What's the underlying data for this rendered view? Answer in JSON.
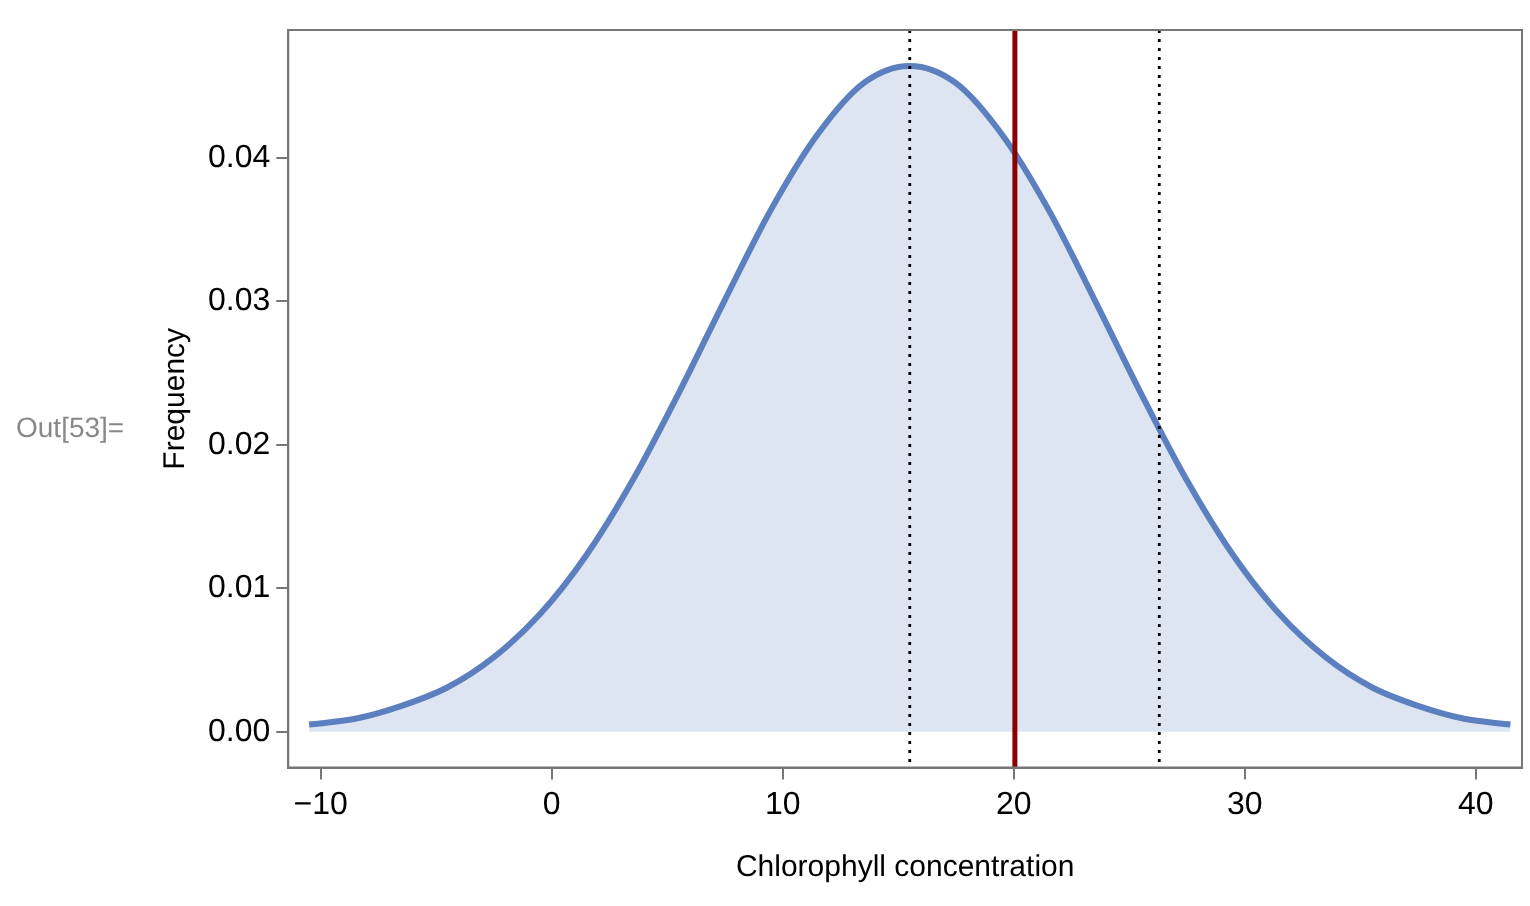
{
  "chart_data": {
    "type": "area",
    "xlabel": "Chlorophyll concentration",
    "ylabel": "Frequency",
    "annotations": [
      "Out[53]="
    ],
    "xlim": [
      -11.4,
      42
    ],
    "ylim": [
      -0.0025,
      0.0489
    ],
    "xticks": [
      -10,
      0,
      10,
      20,
      30,
      40
    ],
    "yticks": [
      {
        "value": 0,
        "label": "0.00"
      },
      0.01,
      0.02,
      0.03,
      0.04
    ],
    "grid": false,
    "legend": false,
    "marker": "none",
    "series": [
      {
        "color": "#5b7fbf",
        "x": [
          -10.5,
          -8.5,
          -6.5,
          -4.5,
          -2.5,
          -0.5,
          1.5,
          3.5,
          5.5,
          7.5,
          9.5,
          11.5,
          13.5,
          15.5,
          17.5,
          19.5,
          21.5,
          23.5,
          25.5,
          27.5,
          29.5,
          31.5,
          33.5,
          35.5,
          37.5,
          39.5,
          41.5
        ],
        "values": [
          0.0005,
          0.0009,
          0.0018,
          0.0031,
          0.0052,
          0.0082,
          0.0123,
          0.0175,
          0.0236,
          0.0301,
          0.0364,
          0.0416,
          0.0452,
          0.0464,
          0.0452,
          0.0416,
          0.0364,
          0.0301,
          0.0236,
          0.0175,
          0.0123,
          0.0082,
          0.0052,
          0.0031,
          0.0018,
          0.0009,
          0.0005
        ]
      }
    ],
    "ref_lines": [
      {
        "axis": "x",
        "value": 15.5,
        "color": "#000000",
        "line_style": "dotted"
      },
      {
        "axis": "x",
        "value": 20.05,
        "color": "#8b0000",
        "line_style": "solid"
      },
      {
        "axis": "x",
        "value": 26.3,
        "color": "#000000",
        "line_style": "dotted"
      }
    ]
  }
}
